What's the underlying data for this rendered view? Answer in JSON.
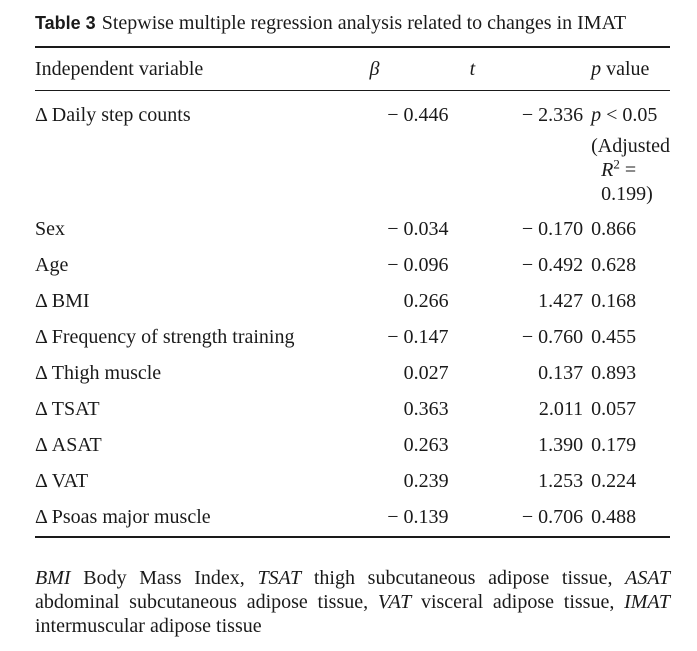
{
  "caption": {
    "label": "Table 3",
    "text": "Stepwise multiple regression analysis related to changes in IMAT"
  },
  "table": {
    "columns": {
      "variable": "Independent variable",
      "beta": "β",
      "t": "t",
      "p_italic": "p",
      "p_rest": " value"
    },
    "first_row": {
      "variable": "Δ Daily step counts",
      "beta": "− 0.446",
      "t": "− 2.336",
      "p_italic": "p",
      "p_rest": " < 0.05",
      "adjusted_label": "(Adjusted",
      "r2_symbol": "R",
      "r2_sup": "2",
      "r2_value": " = 0.199)"
    },
    "rows": [
      {
        "variable": "Sex",
        "beta": "− 0.034",
        "t": "− 0.170",
        "p": "0.866"
      },
      {
        "variable": "Age",
        "beta": "− 0.096",
        "t": "− 0.492",
        "p": "0.628"
      },
      {
        "variable": "Δ BMI",
        "beta": "0.266",
        "t": "1.427",
        "p": "0.168"
      },
      {
        "variable": "Δ Frequency of strength training",
        "beta": "− 0.147",
        "t": "− 0.760",
        "p": "0.455"
      },
      {
        "variable": "Δ Thigh muscle",
        "beta": "0.027",
        "t": "0.137",
        "p": "0.893"
      },
      {
        "variable": "Δ TSAT",
        "beta": "0.363",
        "t": "2.011",
        "p": "0.057"
      },
      {
        "variable": "Δ ASAT",
        "beta": "0.263",
        "t": "1.390",
        "p": "0.179"
      },
      {
        "variable": "Δ VAT",
        "beta": "0.239",
        "t": "1.253",
        "p": "0.224"
      },
      {
        "variable": "Δ Psoas major muscle",
        "beta": "− 0.139",
        "t": "− 0.706",
        "p": "0.488"
      }
    ]
  },
  "footnote": [
    {
      "abbr": "BMI",
      "def": " Body Mass Index, "
    },
    {
      "abbr": "TSAT",
      "def": " thigh subcutaneous adipose tissue, "
    },
    {
      "abbr": "ASAT",
      "def": " abdominal subcutaneous adipose tissue, "
    },
    {
      "abbr": "VAT",
      "def": " visceral adipose tissue, "
    },
    {
      "abbr": "IMAT",
      "def": " intermuscular adipose tissue"
    }
  ]
}
